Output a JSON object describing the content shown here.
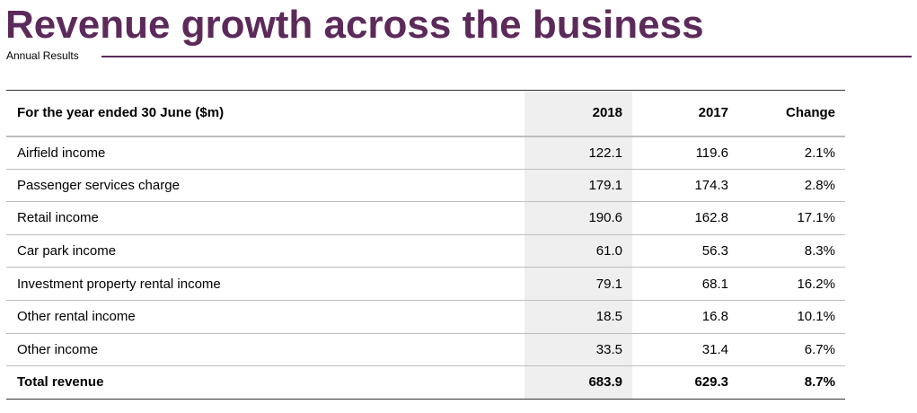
{
  "title": "Revenue growth across the business",
  "subtitle": "Annual Results",
  "accent_color": "#5c2a5a",
  "table": {
    "headers": [
      "For the year ended 30 June ($m)",
      "2018",
      "2017",
      "Change"
    ],
    "rows": [
      {
        "label": "Airfield income",
        "y2018": "122.1",
        "y2017": "119.6",
        "change": "2.1%"
      },
      {
        "label": "Passenger services charge",
        "y2018": "179.1",
        "y2017": "174.3",
        "change": "2.8%"
      },
      {
        "label": "Retail income",
        "y2018": "190.6",
        "y2017": "162.8",
        "change": "17.1%"
      },
      {
        "label": "Car park income",
        "y2018": "61.0",
        "y2017": "56.3",
        "change": "8.3%"
      },
      {
        "label": "Investment property rental income",
        "y2018": "79.1",
        "y2017": "68.1",
        "change": "16.2%"
      },
      {
        "label": "Other rental income",
        "y2018": "18.5",
        "y2017": "16.8",
        "change": "10.1%"
      },
      {
        "label": "Other income",
        "y2018": "33.5",
        "y2017": "31.4",
        "change": "6.7%"
      }
    ],
    "total": {
      "label": "Total revenue",
      "y2018": "683.9",
      "y2017": "629.3",
      "change": "8.7%"
    }
  }
}
